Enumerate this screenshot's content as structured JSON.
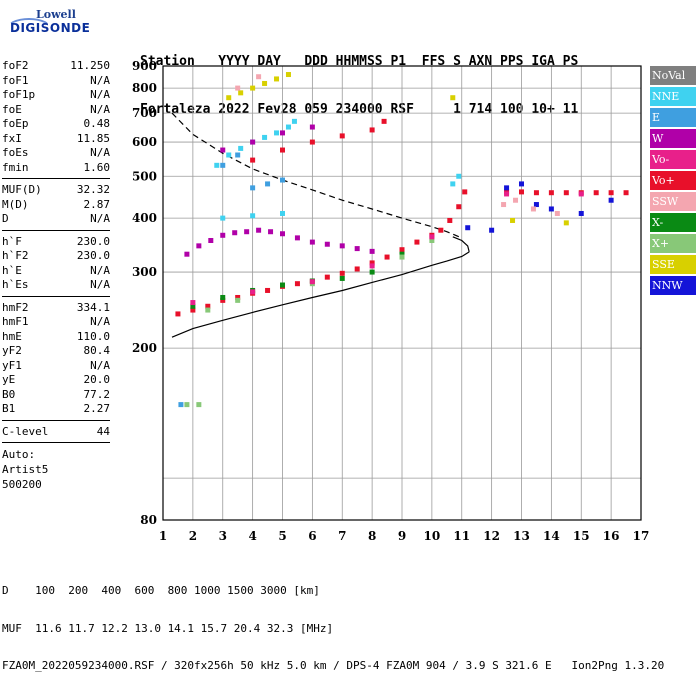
{
  "logo": {
    "line1": "Lowell",
    "line2": "DIGISONDE"
  },
  "header": {
    "line1": "Station   YYYY DAY   DDD HHMMSS P1  FFS S AXN PPS IGA PS",
    "line2": "Fortaleza 2022 Fev28 059 234000 RSF     1 714 100 10+ 11"
  },
  "sidebar": {
    "group1": [
      {
        "label": "foF2",
        "value": "11.250"
      },
      {
        "label": "foF1",
        "value": "N/A"
      },
      {
        "label": "foF1p",
        "value": "N/A"
      },
      {
        "label": "foE",
        "value": "N/A"
      },
      {
        "label": "foEp",
        "value": "0.48"
      },
      {
        "label": "fxI",
        "value": "11.85"
      },
      {
        "label": "foEs",
        "value": "N/A"
      },
      {
        "label": "fmin",
        "value": "1.60"
      }
    ],
    "group2": [
      {
        "label": "MUF(D)",
        "value": "32.32"
      },
      {
        "label": "M(D)",
        "value": "2.87"
      },
      {
        "label": "D",
        "value": "N/A"
      }
    ],
    "group3": [
      {
        "label": "h`F",
        "value": "230.0"
      },
      {
        "label": "h`F2",
        "value": "230.0"
      },
      {
        "label": "h`E",
        "value": "N/A"
      },
      {
        "label": "h`Es",
        "value": "N/A"
      }
    ],
    "group4": [
      {
        "label": "hmF2",
        "value": "334.1"
      },
      {
        "label": "hmF1",
        "value": "N/A"
      },
      {
        "label": "hmE",
        "value": "110.0"
      },
      {
        "label": "yF2",
        "value": "80.4"
      },
      {
        "label": "yF1",
        "value": "N/A"
      },
      {
        "label": "yE",
        "value": "20.0"
      },
      {
        "label": "B0",
        "value": "77.2"
      },
      {
        "label": "B1",
        "value": "2.27"
      }
    ],
    "group5": [
      {
        "label": "C-level",
        "value": "44"
      }
    ],
    "auto": [
      "Auto:",
      "Artist5",
      "500200"
    ]
  },
  "legend": [
    {
      "label": "NoVal",
      "color": "#7f7f7f"
    },
    {
      "label": "NNE",
      "color": "#3fd2f0"
    },
    {
      "label": "E",
      "color": "#3f9fe0"
    },
    {
      "label": "W",
      "color": "#b000a8"
    },
    {
      "label": "Vo-",
      "color": "#e8208a"
    },
    {
      "label": "Vo+",
      "color": "#e8102a"
    },
    {
      "label": "SSW",
      "color": "#f4a6b0"
    },
    {
      "label": "X-",
      "color": "#0a8a14"
    },
    {
      "label": "X+",
      "color": "#88c878"
    },
    {
      "label": "SSE",
      "color": "#d8d000"
    },
    {
      "label": "NNW",
      "color": "#1414d8"
    }
  ],
  "footer": {
    "line1": "D    100  200  400  600  800 1000 1500 3000 [km]",
    "line2": "MUF  11.6 11.7 12.2 13.0 14.1 15.7 20.4 32.3 [MHz]",
    "line3": "FZA0M_2022059234000.RSF / 320fx256h 50 kHz 5.0 km / DPS-4 FZA0M 904 / 3.9 S 321.6 E   Ion2Png 1.3.20"
  },
  "chart_data": {
    "type": "scatter",
    "title": "",
    "xlabel": "",
    "ylabel": "",
    "xlim": [
      1,
      17
    ],
    "ylim": [
      80,
      900
    ],
    "x_ticks": [
      1,
      2,
      3,
      4,
      5,
      6,
      7,
      8,
      9,
      10,
      11,
      12,
      13,
      14,
      15,
      16,
      17
    ],
    "y_ticks": [
      80,
      100,
      200,
      300,
      400,
      500,
      600,
      700,
      800,
      900
    ],
    "y_scale": "log",
    "grid": true,
    "series": [
      {
        "name": "Vo+",
        "color": "#e8102a",
        "points": [
          [
            1.5,
            240
          ],
          [
            2,
            245
          ],
          [
            2.5,
            250
          ],
          [
            3,
            258
          ],
          [
            3.5,
            262
          ],
          [
            4,
            268
          ],
          [
            4.5,
            272
          ],
          [
            5,
            278
          ],
          [
            5.5,
            282
          ],
          [
            6,
            286
          ],
          [
            6.5,
            292
          ],
          [
            7,
            298
          ],
          [
            7.5,
            305
          ],
          [
            8,
            315
          ],
          [
            8.5,
            325
          ],
          [
            9,
            338
          ],
          [
            9.5,
            352
          ],
          [
            10,
            365
          ],
          [
            10.3,
            375
          ],
          [
            10.6,
            395
          ],
          [
            10.9,
            425
          ],
          [
            11.1,
            460
          ],
          [
            12.5,
            460
          ],
          [
            13,
            460
          ],
          [
            13.5,
            458
          ],
          [
            14,
            458
          ],
          [
            14.5,
            458
          ],
          [
            15,
            458
          ],
          [
            15.5,
            458
          ],
          [
            16,
            458
          ],
          [
            16.5,
            458
          ],
          [
            4,
            545
          ],
          [
            5,
            575
          ],
          [
            6,
            600
          ],
          [
            7,
            620
          ],
          [
            8,
            640
          ],
          [
            8.4,
            670
          ]
        ]
      },
      {
        "name": "NNE",
        "color": "#3fd2f0",
        "points": [
          [
            2.8,
            530
          ],
          [
            3.2,
            560
          ],
          [
            3.6,
            580
          ],
          [
            4,
            600
          ],
          [
            4.4,
            615
          ],
          [
            4.8,
            630
          ],
          [
            5.2,
            650
          ],
          [
            5.4,
            670
          ],
          [
            3,
            400
          ],
          [
            4,
            405
          ],
          [
            5,
            410
          ],
          [
            10.7,
            480
          ],
          [
            10.9,
            500
          ]
        ]
      },
      {
        "name": "W",
        "color": "#b000a8",
        "points": [
          [
            1.8,
            330
          ],
          [
            2.2,
            345
          ],
          [
            2.6,
            355
          ],
          [
            3,
            365
          ],
          [
            3.4,
            370
          ],
          [
            3.8,
            372
          ],
          [
            4.2,
            375
          ],
          [
            4.6,
            372
          ],
          [
            5,
            368
          ],
          [
            5.5,
            360
          ],
          [
            6,
            352
          ],
          [
            6.5,
            348
          ],
          [
            7,
            345
          ],
          [
            7.5,
            340
          ],
          [
            8,
            335
          ],
          [
            3,
            575
          ],
          [
            4,
            600
          ],
          [
            5,
            630
          ],
          [
            6,
            650
          ]
        ]
      },
      {
        "name": "X-",
        "color": "#0a8a14",
        "points": [
          [
            2,
            250
          ],
          [
            3,
            262
          ],
          [
            4,
            272
          ],
          [
            5,
            280
          ],
          [
            6,
            286
          ],
          [
            7,
            290
          ],
          [
            8,
            300
          ],
          [
            9,
            330
          ]
        ]
      },
      {
        "name": "X+",
        "color": "#88c878",
        "points": [
          [
            1.8,
            148
          ],
          [
            2.2,
            148
          ],
          [
            2.5,
            245
          ],
          [
            3.5,
            258
          ],
          [
            6,
            282
          ],
          [
            9,
            325
          ],
          [
            10,
            355
          ]
        ]
      },
      {
        "name": "SSE",
        "color": "#d8d000",
        "points": [
          [
            3.2,
            760
          ],
          [
            3.6,
            780
          ],
          [
            4,
            800
          ],
          [
            4.4,
            820
          ],
          [
            4.8,
            840
          ],
          [
            5.2,
            860
          ],
          [
            10.7,
            760
          ],
          [
            12.7,
            395
          ],
          [
            14.5,
            390
          ]
        ]
      },
      {
        "name": "E",
        "color": "#3f9fe0",
        "points": [
          [
            1.6,
            148
          ],
          [
            3,
            530
          ],
          [
            3.5,
            560
          ],
          [
            4,
            470
          ],
          [
            4.5,
            480
          ],
          [
            5,
            490
          ]
        ]
      },
      {
        "name": "NNW",
        "color": "#1414d8",
        "points": [
          [
            12.5,
            470
          ],
          [
            13,
            480
          ],
          [
            13.5,
            430
          ],
          [
            14,
            420
          ],
          [
            15,
            410
          ],
          [
            16,
            440
          ],
          [
            11.2,
            380
          ],
          [
            12,
            375
          ]
        ]
      },
      {
        "name": "SSW",
        "color": "#f4a6b0",
        "points": [
          [
            12.4,
            430
          ],
          [
            12.8,
            440
          ],
          [
            13.4,
            420
          ],
          [
            14.2,
            410
          ],
          [
            3.5,
            800
          ],
          [
            4.2,
            850
          ]
        ]
      },
      {
        "name": "Vo-",
        "color": "#e8208a",
        "points": [
          [
            2,
            255
          ],
          [
            4,
            270
          ],
          [
            6,
            285
          ],
          [
            8,
            310
          ],
          [
            10,
            362
          ],
          [
            12.5,
            455
          ],
          [
            15,
            455
          ]
        ]
      }
    ],
    "curves": [
      {
        "style": "solid",
        "points": [
          [
            1.3,
            212
          ],
          [
            2,
            222
          ],
          [
            3,
            232
          ],
          [
            4,
            242
          ],
          [
            5,
            252
          ],
          [
            6,
            262
          ],
          [
            7,
            272
          ],
          [
            8,
            284
          ],
          [
            9,
            296
          ],
          [
            10,
            311
          ],
          [
            10.5,
            318
          ],
          [
            11,
            326
          ],
          [
            11.25,
            334
          ]
        ]
      },
      {
        "style": "solid",
        "points": [
          [
            11.25,
            334
          ],
          [
            11.2,
            345
          ],
          [
            11,
            355
          ],
          [
            10.7,
            362
          ]
        ]
      },
      {
        "style": "dashed",
        "points": [
          [
            1.3,
            700
          ],
          [
            2,
            625
          ],
          [
            3,
            565
          ],
          [
            4,
            520
          ],
          [
            5,
            490
          ],
          [
            6,
            465
          ],
          [
            7,
            440
          ],
          [
            8,
            420
          ],
          [
            9,
            400
          ],
          [
            10,
            382
          ],
          [
            10.5,
            372
          ],
          [
            11.0,
            360
          ]
        ]
      }
    ]
  }
}
